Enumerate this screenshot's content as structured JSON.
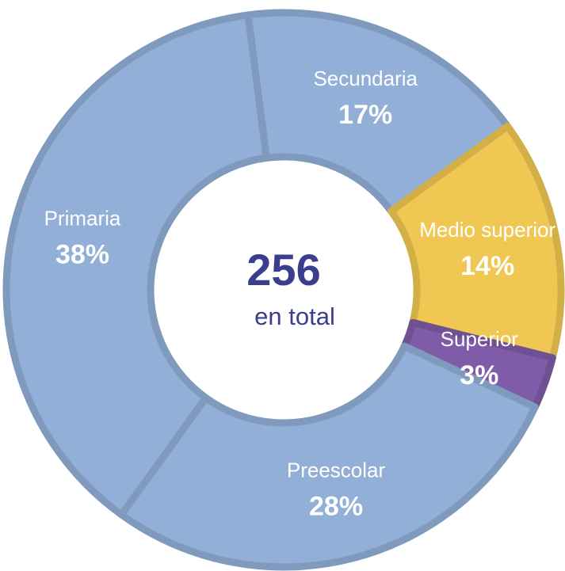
{
  "chart_data": {
    "type": "donut",
    "categories": [
      "Secundaria",
      "Medio superior",
      "Superior",
      "Preescolar",
      "Primaria"
    ],
    "values": [
      17,
      14,
      3,
      28,
      38
    ],
    "value_labels": [
      "17%",
      "14%",
      "3%",
      "28%",
      "38%"
    ],
    "colors": [
      "#91afd7",
      "#f0c752",
      "#7e5ca7",
      "#91afd7",
      "#91afd7"
    ],
    "center_value": 256,
    "center_label": "en total"
  }
}
